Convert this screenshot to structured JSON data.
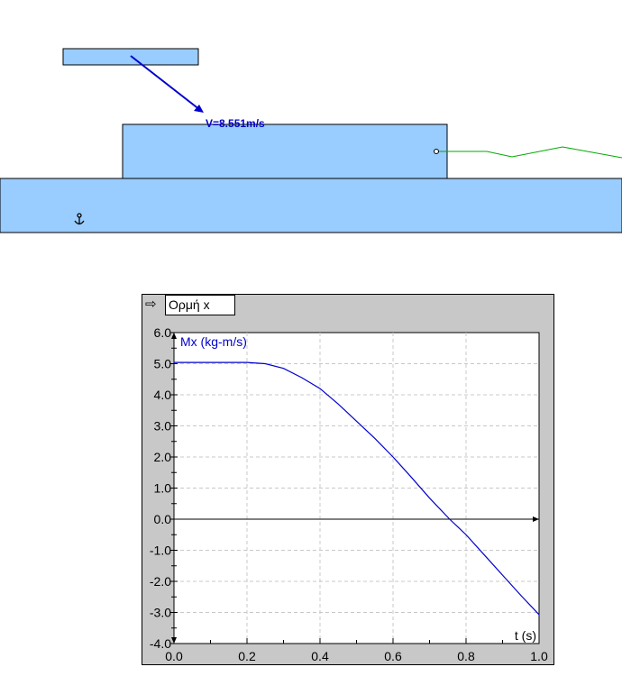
{
  "simulation": {
    "velocity_label": "V=8.551m/s",
    "anchor_icon": "anchor-icon",
    "fill_color": "#99ccff",
    "vector_color": "#0000cc",
    "trace_color": "#00aa00"
  },
  "graph": {
    "title": "Ορμή x",
    "menu_icon": "arrow-right-icon"
  },
  "chart_data": {
    "type": "line",
    "xlabel": "t (s)",
    "ylabel": "Mx (kg-m/s)",
    "xlim": [
      0,
      1.0
    ],
    "ylim": [
      -4.0,
      6.0
    ],
    "xticks": [
      "0.0",
      "0.2",
      "0.4",
      "0.6",
      "0.8",
      "1.0"
    ],
    "yticks": [
      "6.0",
      "5.0",
      "4.0",
      "3.0",
      "2.0",
      "1.0",
      "0.0",
      "-1.0",
      "-2.0",
      "-3.0",
      "-4.0"
    ],
    "grid": true,
    "series": [
      {
        "color": "#0000cc",
        "x": [
          0,
          0.2,
          0.25,
          0.3,
          0.35,
          0.4,
          0.45,
          0.5,
          0.55,
          0.6,
          0.65,
          0.7,
          0.755,
          0.8,
          0.85,
          0.9,
          0.95,
          1.0
        ],
        "y": [
          5.04,
          5.04,
          5.0,
          4.85,
          4.55,
          4.2,
          3.7,
          3.15,
          2.6,
          2.0,
          1.35,
          0.68,
          0.0,
          -0.5,
          -1.15,
          -1.8,
          -2.45,
          -3.07
        ]
      }
    ]
  }
}
